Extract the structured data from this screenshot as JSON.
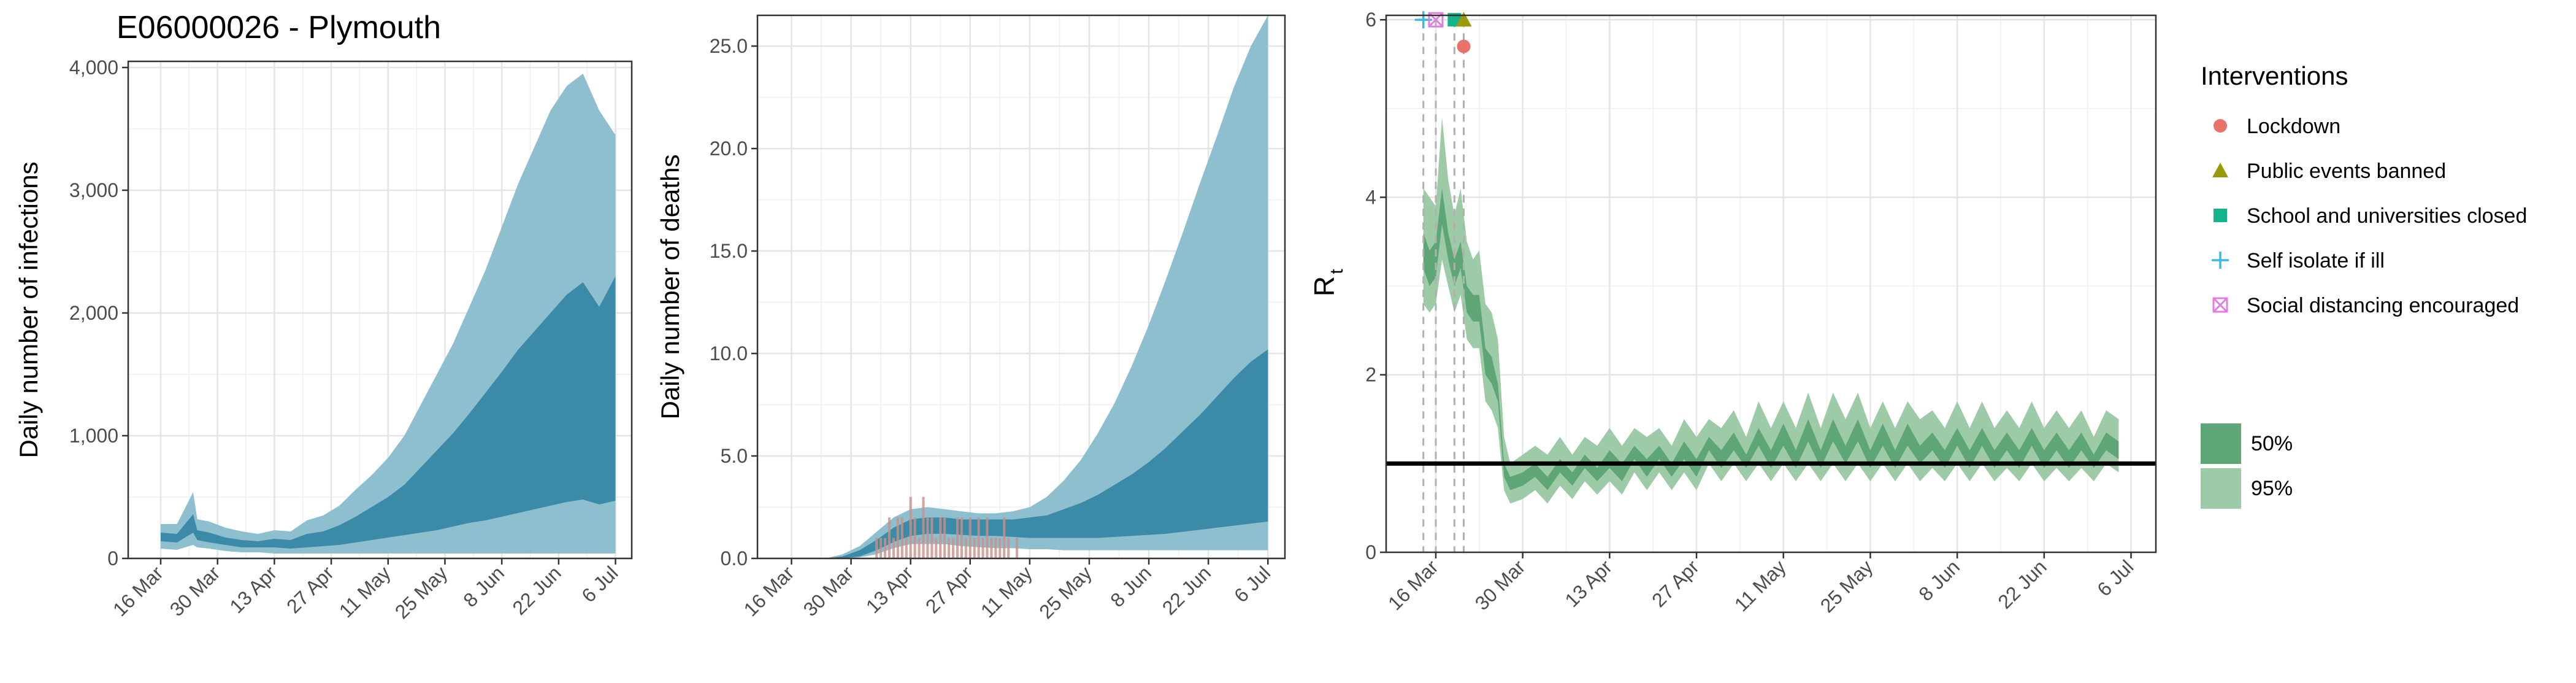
{
  "title": "E06000026 - Plymouth",
  "colors": {
    "infections_95": "#8ebfcf",
    "infections_50": "#3a8aa8",
    "deaths_bar": "#c99088",
    "rt_95": "#9dcaa7",
    "rt_50": "#5fa676",
    "grid_major": "#e4e4e4",
    "grid_minor": "#f2f2f2",
    "lockdown": "#e8736b",
    "public_events": "#9a9a0a",
    "school": "#14b48a",
    "self_isolate": "#3ab8e3",
    "social_distancing": "#e07ee0"
  },
  "chart_data": [
    {
      "type": "area",
      "title": "E06000026 - Plymouth",
      "xlabel": "",
      "ylabel": "Daily number of infections",
      "x_tick_labels": [
        "16 Mar",
        "30 Mar",
        "13 Apr",
        "27 Apr",
        "11 May",
        "25 May",
        "8 Jun",
        "22 Jun",
        "6 Jul"
      ],
      "y_tick_labels": [
        "0",
        "1,000",
        "2,000",
        "3,000",
        "4,000"
      ],
      "ylim": [
        0,
        4050
      ],
      "grid": true,
      "series": [
        {
          "band": "95%",
          "x_days": [
            0,
            4,
            8,
            9,
            12,
            16,
            20,
            24,
            28,
            32,
            36,
            40,
            44,
            48,
            52,
            56,
            60,
            64,
            68,
            72,
            76,
            80,
            84,
            88,
            92,
            96,
            100,
            104,
            108,
            112
          ],
          "upper": [
            280,
            280,
            540,
            320,
            300,
            250,
            220,
            200,
            230,
            220,
            310,
            350,
            430,
            560,
            680,
            820,
            1000,
            1250,
            1500,
            1750,
            2050,
            2350,
            2700,
            3050,
            3350,
            3650,
            3850,
            3950,
            3650,
            3450
          ],
          "lower": [
            80,
            70,
            110,
            90,
            80,
            60,
            50,
            50,
            40,
            40,
            40,
            40,
            40,
            40,
            40,
            40,
            40,
            40,
            40,
            40,
            40,
            40,
            40,
            40,
            40,
            40,
            40,
            40,
            40,
            40
          ]
        },
        {
          "band": "50%",
          "x_days": [
            0,
            4,
            8,
            9,
            12,
            16,
            20,
            24,
            28,
            32,
            36,
            40,
            44,
            48,
            52,
            56,
            60,
            64,
            68,
            72,
            76,
            80,
            84,
            88,
            92,
            96,
            100,
            104,
            108,
            112
          ],
          "upper": [
            210,
            200,
            360,
            230,
            210,
            170,
            150,
            140,
            160,
            150,
            200,
            220,
            270,
            340,
            420,
            500,
            600,
            740,
            880,
            1020,
            1180,
            1350,
            1520,
            1700,
            1850,
            2000,
            2150,
            2250,
            2050,
            2300
          ],
          "lower": [
            140,
            130,
            210,
            150,
            130,
            110,
            90,
            90,
            90,
            80,
            90,
            100,
            110,
            130,
            150,
            170,
            190,
            210,
            230,
            260,
            290,
            310,
            340,
            370,
            400,
            430,
            460,
            480,
            440,
            470
          ]
        }
      ]
    },
    {
      "type": "area",
      "xlabel": "",
      "ylabel": "Daily number of deaths",
      "x_tick_labels": [
        "16 Mar",
        "30 Mar",
        "13 Apr",
        "27 Apr",
        "11 May",
        "25 May",
        "8 Jun",
        "22 Jun",
        "6 Jul"
      ],
      "y_tick_labels": [
        "0.0",
        "5.0",
        "10.0",
        "15.0",
        "20.0",
        "25.0"
      ],
      "ylim": [
        0,
        26.5
      ],
      "grid": true,
      "series": [
        {
          "band": "95%",
          "x_days": [
            0,
            4,
            8,
            12,
            16,
            20,
            24,
            28,
            32,
            36,
            40,
            44,
            48,
            52,
            56,
            60,
            64,
            68,
            72,
            76,
            80,
            84,
            88,
            92,
            96,
            100,
            104,
            108,
            112
          ],
          "upper": [
            0,
            0,
            0,
            0.2,
            0.6,
            1.3,
            2.0,
            2.4,
            2.5,
            2.4,
            2.3,
            2.2,
            2.2,
            2.3,
            2.5,
            3.0,
            3.8,
            4.8,
            6.1,
            7.6,
            9.4,
            11.4,
            13.6,
            15.9,
            18.3,
            20.6,
            23.0,
            25.0,
            26.5
          ],
          "lower": [
            0,
            0,
            0,
            0,
            0.05,
            0.2,
            0.5,
            0.7,
            0.7,
            0.7,
            0.6,
            0.55,
            0.5,
            0.5,
            0.45,
            0.45,
            0.4,
            0.4,
            0.4,
            0.4,
            0.4,
            0.4,
            0.4,
            0.4,
            0.4,
            0.4,
            0.4,
            0.4,
            0.4
          ]
        },
        {
          "band": "50%",
          "x_days": [
            0,
            4,
            8,
            12,
            16,
            20,
            24,
            28,
            32,
            36,
            40,
            44,
            48,
            52,
            56,
            60,
            64,
            68,
            72,
            76,
            80,
            84,
            88,
            92,
            96,
            100,
            104,
            108,
            112
          ],
          "upper": [
            0,
            0,
            0,
            0.1,
            0.4,
            0.9,
            1.5,
            1.9,
            2.0,
            2.0,
            1.9,
            1.9,
            1.9,
            1.9,
            2.0,
            2.1,
            2.4,
            2.7,
            3.1,
            3.6,
            4.1,
            4.7,
            5.4,
            6.2,
            7.0,
            7.9,
            8.8,
            9.6,
            10.2
          ],
          "lower": [
            0,
            0,
            0,
            0,
            0.1,
            0.4,
            0.8,
            1.1,
            1.2,
            1.2,
            1.15,
            1.1,
            1.1,
            1.05,
            1.0,
            1.0,
            1.0,
            1.0,
            1.0,
            1.05,
            1.1,
            1.15,
            1.2,
            1.3,
            1.4,
            1.5,
            1.6,
            1.7,
            1.8
          ]
        }
      ],
      "observed_deaths": {
        "x_days": [
          20,
          21,
          22,
          23,
          24,
          25,
          26,
          27,
          28,
          29,
          30,
          31,
          32,
          33,
          34,
          35,
          36,
          37,
          38,
          39,
          40,
          41,
          42,
          43,
          44,
          45,
          46,
          47,
          48,
          49,
          50,
          51,
          52,
          53
        ],
        "values": [
          1,
          1,
          1,
          2,
          1,
          2,
          2,
          1,
          3,
          2,
          1,
          3,
          2,
          2,
          1,
          2,
          2,
          1,
          1,
          2,
          2,
          1,
          2,
          1,
          2,
          1,
          2,
          1,
          1,
          1,
          2,
          1,
          0,
          1
        ]
      }
    },
    {
      "type": "area",
      "xlabel": "",
      "ylabel": "R",
      "ylabel_subscript": "t",
      "x_tick_labels": [
        "16 Mar",
        "30 Mar",
        "13 Apr",
        "27 Apr",
        "11 May",
        "25 May",
        "8 Jun",
        "22 Jun",
        "6 Jul"
      ],
      "y_tick_labels": [
        "0",
        "2",
        "4",
        "6"
      ],
      "ylim": [
        0,
        6.05
      ],
      "grid": true,
      "reference_line": 1,
      "series": [
        {
          "band": "95%",
          "x_days": [
            -2,
            -1,
            0,
            1,
            2,
            3,
            4,
            5,
            6,
            7,
            8,
            9,
            10,
            11,
            12,
            14,
            16,
            18,
            20,
            22,
            24,
            26,
            28,
            30,
            32,
            34,
            36,
            38,
            40,
            42,
            44,
            46,
            48,
            50,
            52,
            54,
            56,
            58,
            60,
            62,
            64,
            66,
            68,
            70,
            72,
            74,
            76,
            78,
            80,
            82,
            84,
            86,
            88,
            90,
            92,
            94,
            96,
            98,
            100,
            102,
            104,
            106,
            108,
            110
          ],
          "upper": [
            4.1,
            4.0,
            3.9,
            4.9,
            4.2,
            3.8,
            4.1,
            3.5,
            3.3,
            3.4,
            2.8,
            2.7,
            2.4,
            1.3,
            1.0,
            1.1,
            1.2,
            1.1,
            1.3,
            1.1,
            1.3,
            1.2,
            1.4,
            1.2,
            1.4,
            1.3,
            1.4,
            1.2,
            1.5,
            1.3,
            1.5,
            1.4,
            1.6,
            1.3,
            1.7,
            1.4,
            1.7,
            1.4,
            1.8,
            1.4,
            1.8,
            1.5,
            1.8,
            1.4,
            1.7,
            1.4,
            1.7,
            1.5,
            1.6,
            1.4,
            1.7,
            1.4,
            1.7,
            1.4,
            1.6,
            1.4,
            1.7,
            1.4,
            1.6,
            1.4,
            1.6,
            1.3,
            1.6,
            1.5
          ],
          "lower": [
            2.8,
            2.7,
            2.8,
            3.3,
            3.0,
            2.7,
            2.9,
            2.4,
            2.3,
            2.3,
            1.7,
            1.6,
            1.4,
            0.7,
            0.55,
            0.6,
            0.7,
            0.55,
            0.75,
            0.6,
            0.8,
            0.65,
            0.8,
            0.65,
            0.9,
            0.7,
            0.9,
            0.7,
            0.9,
            0.7,
            1.0,
            0.8,
            1.0,
            0.8,
            1.0,
            0.8,
            1.0,
            0.8,
            1.0,
            0.8,
            1.0,
            0.8,
            1.0,
            0.8,
            1.0,
            0.8,
            1.0,
            0.8,
            0.95,
            0.8,
            1.0,
            0.8,
            1.0,
            0.8,
            0.95,
            0.8,
            1.0,
            0.8,
            0.95,
            0.8,
            0.95,
            0.8,
            1.0,
            0.9
          ]
        },
        {
          "band": "50%",
          "x_days": [
            -2,
            -1,
            0,
            1,
            2,
            3,
            4,
            5,
            6,
            7,
            8,
            9,
            10,
            11,
            12,
            14,
            16,
            18,
            20,
            22,
            24,
            26,
            28,
            30,
            32,
            34,
            36,
            38,
            40,
            42,
            44,
            46,
            48,
            50,
            52,
            54,
            56,
            58,
            60,
            62,
            64,
            66,
            68,
            70,
            72,
            74,
            76,
            78,
            80,
            82,
            84,
            86,
            88,
            90,
            92,
            94,
            96,
            98,
            100,
            102,
            104,
            106,
            108,
            110
          ],
          "upper": [
            3.6,
            3.4,
            3.5,
            4.1,
            3.6,
            3.3,
            3.5,
            3.0,
            2.9,
            2.9,
            2.3,
            2.2,
            1.9,
            1.0,
            0.85,
            0.9,
            1.0,
            0.85,
            1.05,
            0.9,
            1.1,
            0.95,
            1.15,
            1.0,
            1.2,
            1.05,
            1.2,
            1.0,
            1.25,
            1.05,
            1.3,
            1.15,
            1.35,
            1.1,
            1.4,
            1.15,
            1.45,
            1.15,
            1.5,
            1.15,
            1.5,
            1.2,
            1.5,
            1.15,
            1.45,
            1.15,
            1.45,
            1.2,
            1.35,
            1.15,
            1.4,
            1.15,
            1.4,
            1.15,
            1.35,
            1.15,
            1.4,
            1.15,
            1.35,
            1.15,
            1.35,
            1.1,
            1.35,
            1.25
          ],
          "lower": [
            3.2,
            3.0,
            3.1,
            3.7,
            3.3,
            3.0,
            3.2,
            2.7,
            2.6,
            2.6,
            2.0,
            1.9,
            1.7,
            0.85,
            0.7,
            0.75,
            0.85,
            0.7,
            0.9,
            0.75,
            0.95,
            0.8,
            0.95,
            0.8,
            1.05,
            0.85,
            1.05,
            0.85,
            1.05,
            0.85,
            1.15,
            0.95,
            1.15,
            0.95,
            1.2,
            0.95,
            1.2,
            0.95,
            1.25,
            0.95,
            1.25,
            1.0,
            1.25,
            0.95,
            1.2,
            0.95,
            1.2,
            1.0,
            1.15,
            0.95,
            1.2,
            0.95,
            1.2,
            0.95,
            1.15,
            0.95,
            1.2,
            0.95,
            1.15,
            0.95,
            1.15,
            0.95,
            1.15,
            1.05
          ]
        }
      ],
      "interventions": [
        {
          "name": "Self isolate if ill",
          "day": -2,
          "marker_y": 6.0,
          "shape": "plus",
          "color_key": "self_isolate"
        },
        {
          "name": "Social distancing encouraged",
          "day": 0,
          "marker_y": 6.0,
          "shape": "boxcross",
          "color_key": "social_distancing"
        },
        {
          "name": "School and universities closed",
          "day": 3,
          "marker_y": 6.0,
          "shape": "square",
          "color_key": "school"
        },
        {
          "name": "Public events banned",
          "day": 4.5,
          "marker_y": 6.0,
          "shape": "triangle",
          "color_key": "public_events"
        },
        {
          "name": "Lockdown",
          "day": 4.5,
          "marker_y": 5.7,
          "shape": "circle",
          "color_key": "lockdown"
        }
      ]
    }
  ],
  "legend": {
    "interventions_title": "Interventions",
    "interventions": [
      {
        "label": "Lockdown",
        "shape": "circle",
        "color_key": "lockdown"
      },
      {
        "label": "Public events banned",
        "shape": "triangle",
        "color_key": "public_events"
      },
      {
        "label": "School and universities closed",
        "shape": "square",
        "color_key": "school"
      },
      {
        "label": "Self isolate if ill",
        "shape": "plus",
        "color_key": "self_isolate"
      },
      {
        "label": "Social distancing encouraged",
        "shape": "boxcross",
        "color_key": "social_distancing"
      }
    ],
    "bands": [
      {
        "label": "50%",
        "color_key": "rt_50"
      },
      {
        "label": "95%",
        "color_key": "rt_95"
      }
    ]
  }
}
